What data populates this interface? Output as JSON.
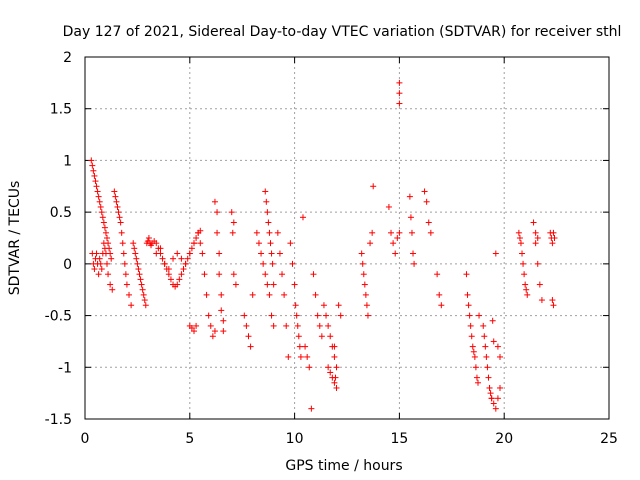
{
  "chart_data": {
    "type": "scatter",
    "title": "Day 127 of 2021, Sidereal Day-to-day VTEC variation (SDTVAR) for receiver sthl",
    "xlabel": "GPS time / hours",
    "ylabel": "SDTVAR / TECUs",
    "xlim": [
      0,
      25
    ],
    "ylim": [
      -1.5,
      2
    ],
    "grid": true,
    "marker": "+",
    "color": "#ff0000",
    "x_ticks": [
      {
        "value": 0,
        "label": "0"
      },
      {
        "value": 5,
        "label": "5"
      },
      {
        "value": 10,
        "label": "10"
      },
      {
        "value": 15,
        "label": "15"
      },
      {
        "value": 20,
        "label": "20"
      },
      {
        "value": 25,
        "label": "25"
      }
    ],
    "y_ticks": [
      {
        "value": 2,
        "label": "2"
      },
      {
        "value": 1.5,
        "label": "1.5"
      },
      {
        "value": 1,
        "label": "1"
      },
      {
        "value": 0.5,
        "label": "0.5"
      },
      {
        "value": 0,
        "label": "0"
      },
      {
        "value": -0.5,
        "label": "-0.5"
      },
      {
        "value": -1,
        "label": "-1"
      },
      {
        "value": -1.5,
        "label": "-1.5"
      }
    ],
    "series": [
      {
        "name": "SDTVAR",
        "x": [
          0.3,
          0.35,
          0.4,
          0.45,
          0.5,
          0.55,
          0.6,
          0.65,
          0.7,
          0.75,
          0.8,
          0.85,
          0.9,
          0.95,
          1.0,
          1.05,
          1.1,
          1.15,
          1.2,
          1.25,
          0.35,
          0.4,
          0.45,
          0.5,
          0.55,
          0.6,
          0.65,
          0.7,
          0.75,
          0.8,
          0.85,
          0.9,
          0.95,
          1.0,
          1.05,
          1.1,
          1.2,
          1.3,
          1.4,
          1.45,
          1.5,
          1.55,
          1.6,
          1.65,
          1.7,
          1.75,
          1.8,
          1.85,
          1.9,
          1.95,
          2.0,
          2.1,
          2.2,
          2.3,
          2.35,
          2.4,
          2.45,
          2.5,
          2.55,
          2.6,
          2.65,
          2.7,
          2.75,
          2.8,
          2.85,
          2.9,
          2.95,
          3.0,
          3.05,
          3.1,
          3.15,
          3.2,
          3.3,
          3.4,
          3.5,
          3.6,
          3.7,
          3.8,
          3.9,
          4.0,
          4.1,
          4.2,
          4.3,
          4.4,
          4.5,
          4.6,
          4.7,
          4.8,
          4.9,
          5.0,
          5.1,
          5.2,
          5.3,
          5.4,
          5.5,
          3.4,
          3.6,
          3.8,
          4.0,
          4.2,
          4.4,
          4.6,
          4.8,
          5.0,
          5.2,
          5.4,
          5.0,
          5.1,
          5.2,
          5.3,
          5.5,
          5.6,
          5.7,
          5.8,
          5.9,
          6.0,
          6.1,
          6.2,
          6.2,
          6.3,
          6.3,
          6.4,
          6.4,
          6.5,
          6.5,
          6.6,
          6.6,
          7.0,
          7.05,
          7.1,
          7.2,
          7.1,
          7.6,
          7.7,
          7.8,
          7.9,
          8.0,
          8.2,
          8.3,
          8.4,
          8.5,
          8.6,
          8.7,
          8.8,
          8.9,
          9.0,
          8.6,
          8.65,
          8.7,
          8.75,
          8.8,
          8.85,
          8.9,
          8.95,
          9.0,
          9.2,
          9.3,
          9.4,
          9.5,
          9.6,
          9.7,
          9.8,
          9.9,
          10.0,
          10.05,
          10.1,
          10.15,
          10.2,
          10.25,
          10.3,
          10.4,
          10.5,
          10.6,
          10.7,
          10.8,
          10.9,
          11.0,
          11.1,
          11.2,
          11.3,
          11.4,
          11.5,
          11.6,
          11.7,
          11.8,
          11.9,
          12.0,
          11.6,
          11.7,
          11.8,
          11.9,
          12.0,
          12.1,
          12.2,
          11.9,
          11.95,
          13.2,
          13.25,
          13.3,
          13.35,
          13.4,
          13.45,
          13.5,
          13.6,
          13.7,
          13.75,
          14.5,
          14.6,
          14.7,
          14.8,
          14.9,
          15.0,
          15.0,
          15.0,
          15.0,
          15.5,
          15.55,
          15.6,
          15.65,
          15.7,
          16.2,
          16.3,
          16.4,
          16.5,
          16.8,
          16.9,
          17.0,
          18.2,
          18.25,
          18.3,
          18.35,
          18.4,
          18.45,
          18.5,
          18.55,
          18.6,
          18.65,
          18.7,
          18.75,
          18.8,
          19.0,
          19.05,
          19.1,
          19.15,
          19.2,
          19.25,
          19.3,
          19.35,
          19.4,
          19.45,
          19.5,
          19.3,
          19.4,
          19.5,
          19.6,
          19.7,
          19.8,
          19.6,
          19.7,
          19.8,
          20.7,
          20.75,
          20.8,
          20.85,
          20.9,
          20.95,
          21.0,
          21.05,
          21.1,
          21.4,
          21.5,
          21.6,
          21.7,
          21.8,
          21.5,
          21.6,
          22.2,
          22.25,
          22.3,
          22.35,
          22.4,
          22.3,
          22.35
        ],
        "y": [
          1.0,
          0.95,
          0.9,
          0.85,
          0.8,
          0.75,
          0.7,
          0.65,
          0.6,
          0.55,
          0.5,
          0.45,
          0.4,
          0.35,
          0.3,
          0.25,
          0.2,
          0.15,
          0.1,
          0.05,
          0.1,
          0.0,
          -0.05,
          0.05,
          0.1,
          0.0,
          -0.1,
          0.05,
          0.0,
          -0.05,
          0.1,
          0.2,
          0.15,
          0.1,
          0.0,
          -0.1,
          -0.2,
          -0.25,
          0.7,
          0.65,
          0.6,
          0.55,
          0.5,
          0.45,
          0.4,
          0.3,
          0.2,
          0.1,
          0.0,
          -0.1,
          -0.2,
          -0.3,
          -0.4,
          0.2,
          0.15,
          0.1,
          0.05,
          0.0,
          -0.05,
          -0.1,
          -0.15,
          -0.2,
          -0.25,
          -0.3,
          -0.35,
          -0.4,
          0.2,
          0.22,
          0.25,
          0.2,
          0.18,
          0.2,
          0.22,
          0.2,
          0.15,
          0.1,
          0.05,
          0.0,
          -0.05,
          -0.1,
          -0.15,
          -0.2,
          -0.22,
          -0.2,
          -0.15,
          -0.1,
          -0.05,
          0.0,
          0.05,
          0.1,
          0.15,
          0.2,
          0.25,
          0.3,
          0.32,
          0.1,
          0.15,
          0.0,
          -0.05,
          0.05,
          0.1,
          0.05,
          0.0,
          0.1,
          0.2,
          0.3,
          -0.6,
          -0.62,
          -0.65,
          -0.6,
          0.2,
          0.1,
          -0.1,
          -0.3,
          -0.5,
          -0.6,
          -0.7,
          -0.65,
          0.6,
          0.5,
          0.3,
          0.1,
          -0.1,
          -0.3,
          -0.45,
          -0.55,
          -0.65,
          0.5,
          0.3,
          -0.1,
          -0.2,
          0.4,
          -0.5,
          -0.6,
          -0.7,
          -0.8,
          -0.3,
          0.3,
          0.2,
          0.1,
          0.0,
          -0.1,
          -0.2,
          -0.3,
          -0.5,
          -0.6,
          0.7,
          0.6,
          0.5,
          0.4,
          0.3,
          0.2,
          0.1,
          0.0,
          -0.2,
          0.3,
          0.1,
          -0.1,
          -0.3,
          -0.6,
          -0.9,
          0.2,
          0.0,
          -0.2,
          -0.4,
          -0.5,
          -0.6,
          -0.7,
          -0.8,
          -0.9,
          0.45,
          -0.8,
          -0.9,
          -1.0,
          -1.4,
          -0.1,
          -0.3,
          -0.5,
          -0.6,
          -0.7,
          -0.4,
          -0.5,
          -0.6,
          -0.7,
          -0.8,
          -0.9,
          -1.0,
          -1.0,
          -1.05,
          -1.1,
          -1.15,
          -1.2,
          -0.4,
          -0.5,
          -0.8,
          -1.1,
          0.1,
          0.0,
          -0.1,
          -0.2,
          -0.3,
          -0.4,
          -0.5,
          0.2,
          0.3,
          0.75,
          0.55,
          0.3,
          0.2,
          0.1,
          0.25,
          0.3,
          1.75,
          1.65,
          1.55,
          0.65,
          0.45,
          0.3,
          0.1,
          0.0,
          0.7,
          0.6,
          0.4,
          0.3,
          -0.1,
          -0.3,
          -0.4,
          -0.1,
          -0.3,
          -0.4,
          -0.5,
          -0.6,
          -0.7,
          -0.8,
          -0.85,
          -0.9,
          -1.0,
          -1.1,
          -1.15,
          -0.5,
          -0.6,
          -0.7,
          -0.8,
          -0.9,
          -1.0,
          -1.1,
          -1.2,
          -1.25,
          -1.3,
          -0.55,
          -0.75,
          -1.2,
          -1.3,
          -1.35,
          -1.4,
          -1.3,
          -1.2,
          0.1,
          -0.8,
          -0.9,
          0.3,
          0.25,
          0.2,
          0.1,
          0.0,
          -0.1,
          -0.2,
          -0.25,
          -0.3,
          0.4,
          0.2,
          0.0,
          -0.2,
          -0.35,
          0.3,
          0.25,
          0.3,
          0.25,
          0.2,
          0.3,
          0.25,
          -0.35,
          -0.4
        ]
      }
    ]
  }
}
